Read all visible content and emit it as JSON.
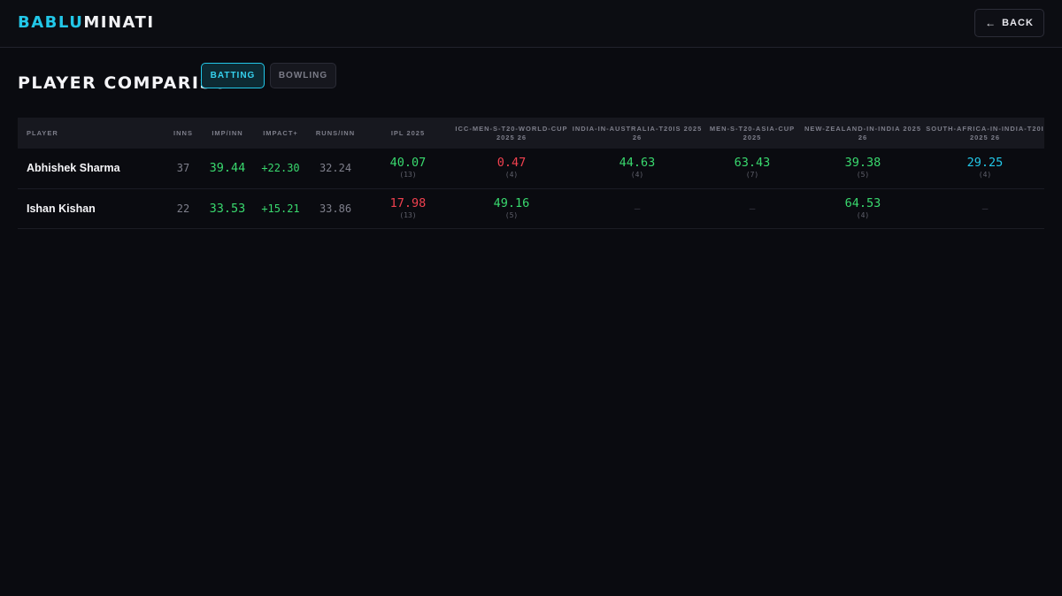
{
  "brand": {
    "accent": "BABLU",
    "rest": "MINATI"
  },
  "header": {
    "back_arrow": "←",
    "back_label": "BACK"
  },
  "page": {
    "title": "PLAYER COMPARISON"
  },
  "tabs": [
    {
      "label": "BATTING",
      "active": true
    },
    {
      "label": "BOWLING",
      "active": false
    }
  ],
  "colors": {
    "accent": "#22c7e8",
    "positive": "#39d96e",
    "negative": "#f0414f",
    "background": "#0a0b10"
  },
  "table": {
    "columns": [
      "PLAYER",
      "INNS",
      "IMP/INN",
      "IMPACT+",
      "RUNS/INN",
      "IPL 2025",
      "ICC-MEN-S-T20-WORLD-CUP 2025 26",
      "INDIA-IN-AUSTRALIA-T20IS 2025 26",
      "MEN-S-T20-ASIA-CUP 2025",
      "NEW-ZEALAND-IN-INDIA 2025 26",
      "SOUTH-AFRICA-IN-INDIA-T20I 2025 26"
    ],
    "rows": [
      {
        "player": "Abhishek Sharma",
        "inns": "37",
        "imp_inn": "39.44",
        "impact": "+22.30",
        "runs_inn": "32.24",
        "comps": [
          {
            "value": "40.07",
            "n": "(13)",
            "color": "green"
          },
          {
            "value": "0.47",
            "n": "(4)",
            "color": "red"
          },
          {
            "value": "44.63",
            "n": "(4)",
            "color": "green"
          },
          {
            "value": "63.43",
            "n": "(7)",
            "color": "green"
          },
          {
            "value": "39.38",
            "n": "(5)",
            "color": "green"
          },
          {
            "value": "29.25",
            "n": "(4)",
            "color": "cyan"
          }
        ]
      },
      {
        "player": "Ishan Kishan",
        "inns": "22",
        "imp_inn": "33.53",
        "impact": "+15.21",
        "runs_inn": "33.86",
        "comps": [
          {
            "value": "17.98",
            "n": "(13)",
            "color": "red"
          },
          {
            "value": "49.16",
            "n": "(5)",
            "color": "green"
          },
          {
            "value": "—",
            "n": "",
            "color": "dash"
          },
          {
            "value": "—",
            "n": "",
            "color": "dash"
          },
          {
            "value": "64.53",
            "n": "(4)",
            "color": "green"
          },
          {
            "value": "—",
            "n": "",
            "color": "dash"
          }
        ]
      }
    ]
  }
}
